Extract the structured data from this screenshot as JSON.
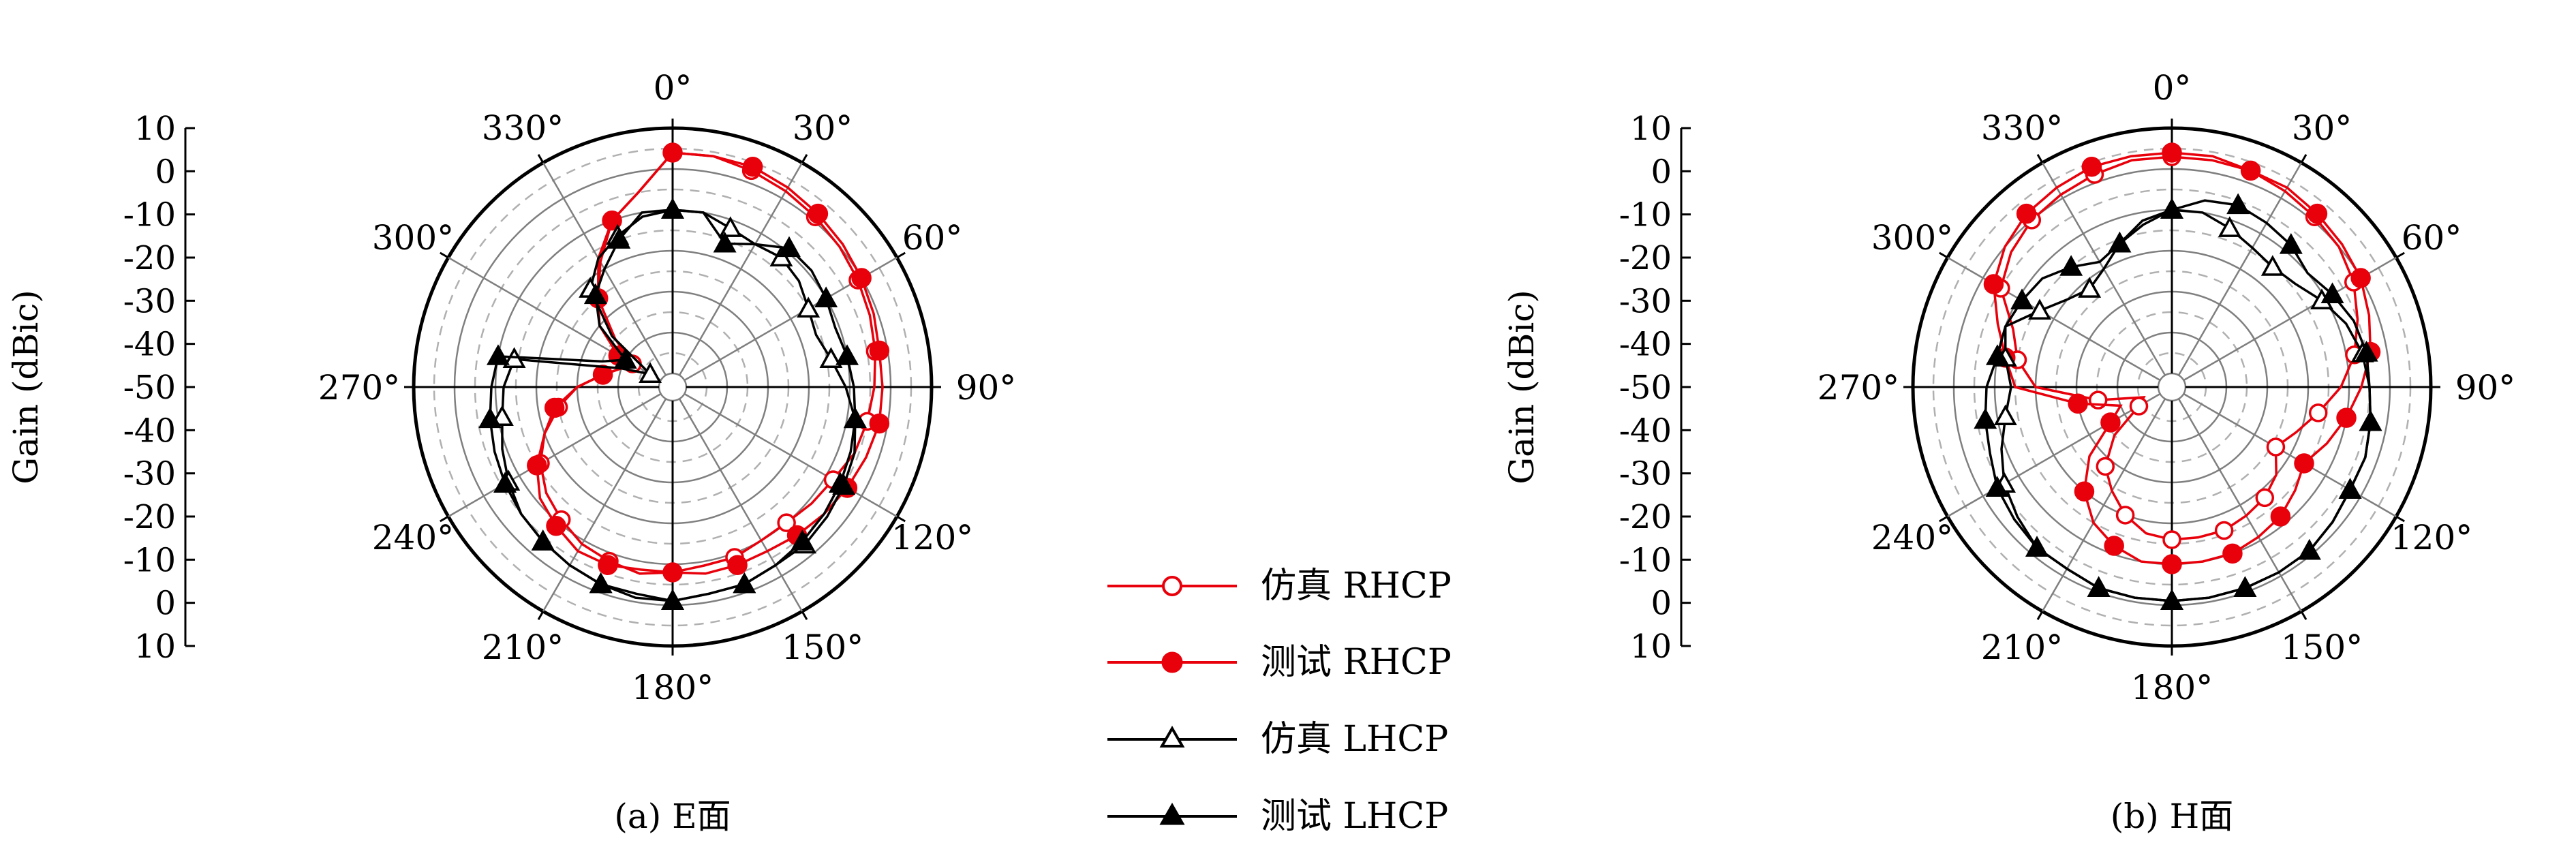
{
  "figure": {
    "ylabel": "Gain (dBic)",
    "radial_ticks": [
      "10",
      "0",
      "-10",
      "-20",
      "-30",
      "-40",
      "-50",
      "-40",
      "-30",
      "-20",
      "-10",
      "0",
      "10"
    ],
    "angle_labels": [
      "0°",
      "30°",
      "60°",
      "90°",
      "120°",
      "150°",
      "180°",
      "210°",
      "240°",
      "270°",
      "300°",
      "330°"
    ],
    "legend": [
      {
        "label": "仿真 RHCP",
        "color": "#e8000b",
        "marker": "open-circle"
      },
      {
        "label": "测试 RHCP",
        "color": "#e8000b",
        "marker": "filled-circle"
      },
      {
        "label": "仿真 LHCP",
        "color": "#000000",
        "marker": "open-triangle"
      },
      {
        "label": "测试 LHCP",
        "color": "#000000",
        "marker": "filled-triangle"
      }
    ]
  },
  "chart_data": [
    {
      "type": "polar-line",
      "caption": "(a) E面",
      "ylabel": "Gain (dBic)",
      "r_range": [
        -50,
        10
      ],
      "angle_step_deg": 10,
      "series": [
        {
          "name": "仿真 RHCP",
          "color": "#e8000b",
          "marker": "open-circle",
          "values": [
            4,
            4,
            3,
            2,
            1,
            0,
            -1,
            -2,
            -3,
            -4,
            -5,
            -6,
            -8,
            -9,
            -10,
            -10,
            -9,
            -9,
            -8,
            -7,
            -8,
            -9,
            -11,
            -13,
            -16,
            -20,
            -25,
            -30,
            -36,
            -40,
            -42,
            -35,
            -25,
            -17,
            -10,
            -5
          ]
        },
        {
          "name": "测试 RHCP",
          "color": "#e8000b",
          "marker": "filled-circle",
          "values": [
            4,
            4,
            4,
            3,
            2,
            1,
            0,
            -1,
            -2,
            -2,
            -2,
            -3,
            -4,
            -5,
            -6,
            -7,
            -7,
            -7,
            -8,
            -8,
            -7,
            -7,
            -9,
            -11,
            -15,
            -20,
            -24,
            -30,
            -36,
            -40,
            -38,
            -30,
            -25,
            -18,
            -10,
            -5
          ]
        },
        {
          "name": "仿真 LHCP",
          "color": "#000000",
          "marker": "open-triangle",
          "values": [
            -10,
            -10,
            -12,
            -13,
            -12,
            -13,
            -15,
            -16,
            -14,
            -11,
            -8,
            -6,
            -5,
            -4,
            -3,
            -3,
            -2,
            -2,
            -1,
            -2,
            -2,
            -3,
            -4,
            -5,
            -7,
            -9,
            -11,
            -12,
            -14,
            -40,
            -47,
            -34,
            -22,
            -17,
            -14,
            -11
          ]
        },
        {
          "name": "测试 LHCP",
          "color": "#000000",
          "marker": "open-triangle-filled",
          "values": [
            -10,
            -10,
            -16,
            -13,
            -9,
            -9,
            -10,
            -11,
            -10,
            -9,
            -8,
            -7,
            -6,
            -5,
            -4,
            -3,
            -2,
            -2,
            -1,
            -1,
            -2,
            -3,
            -4,
            -5,
            -6,
            -7,
            -8,
            -9,
            -10,
            -35,
            -40,
            -30,
            -24,
            -20,
            -15,
            -10
          ]
        }
      ]
    },
    {
      "type": "polar-line",
      "caption": "(b) H面",
      "ylabel": "Gain (dBic)",
      "r_range": [
        -50,
        10
      ],
      "angle_step_deg": 10,
      "series": [
        {
          "name": "仿真 RHCP",
          "color": "#e8000b",
          "marker": "open-circle",
          "values": [
            3,
            3,
            3,
            2,
            1,
            0,
            -2,
            -5,
            -8,
            -12,
            -17,
            -21,
            -24,
            -20,
            -18,
            -17,
            -16,
            -16,
            -16,
            -17,
            -20,
            -24,
            -28,
            -35,
            -44,
            -46,
            -35,
            -20,
            -15,
            -12,
            -5,
            -2,
            0,
            1,
            2,
            3
          ]
        },
        {
          "name": "测试 RHCP",
          "color": "#e8000b",
          "marker": "filled-circle",
          "values": [
            4,
            4,
            3,
            3,
            2,
            1,
            0,
            -2,
            -4,
            -7,
            -10,
            -13,
            -16,
            -14,
            -12,
            -11,
            -10,
            -10,
            -10,
            -10,
            -12,
            -15,
            -20,
            -27,
            -36,
            -40,
            -30,
            -15,
            -12,
            -8,
            -3,
            0,
            2,
            3,
            4,
            4
          ]
        },
        {
          "name": "仿真 LHCP",
          "color": "#000000",
          "marker": "open-triangle",
          "values": [
            -10,
            -10,
            -12,
            -14,
            -15,
            -14,
            -11,
            -8,
            -6,
            -5,
            -4,
            -3,
            -3,
            -2,
            -1,
            -1,
            -1,
            -1,
            -1,
            -1,
            -1,
            -2,
            -2,
            -4,
            -6,
            -9,
            -12,
            -14,
            -12,
            -10,
            -16,
            -20,
            -22,
            -20,
            -16,
            -12
          ]
        },
        {
          "name": "测试 LHCP",
          "color": "#000000",
          "marker": "filled-triangle",
          "values": [
            -10,
            -7,
            -6,
            -7,
            -8,
            -10,
            -8,
            -6,
            -5,
            -5,
            -4,
            -3,
            -3,
            -2,
            -1,
            -1,
            -1,
            -1,
            -1,
            -1,
            -1,
            -2,
            -2,
            -3,
            -4,
            -6,
            -7,
            -8,
            -10,
            -10,
            -11,
            -12,
            -15,
            -18,
            -16,
            -13
          ]
        }
      ]
    }
  ]
}
